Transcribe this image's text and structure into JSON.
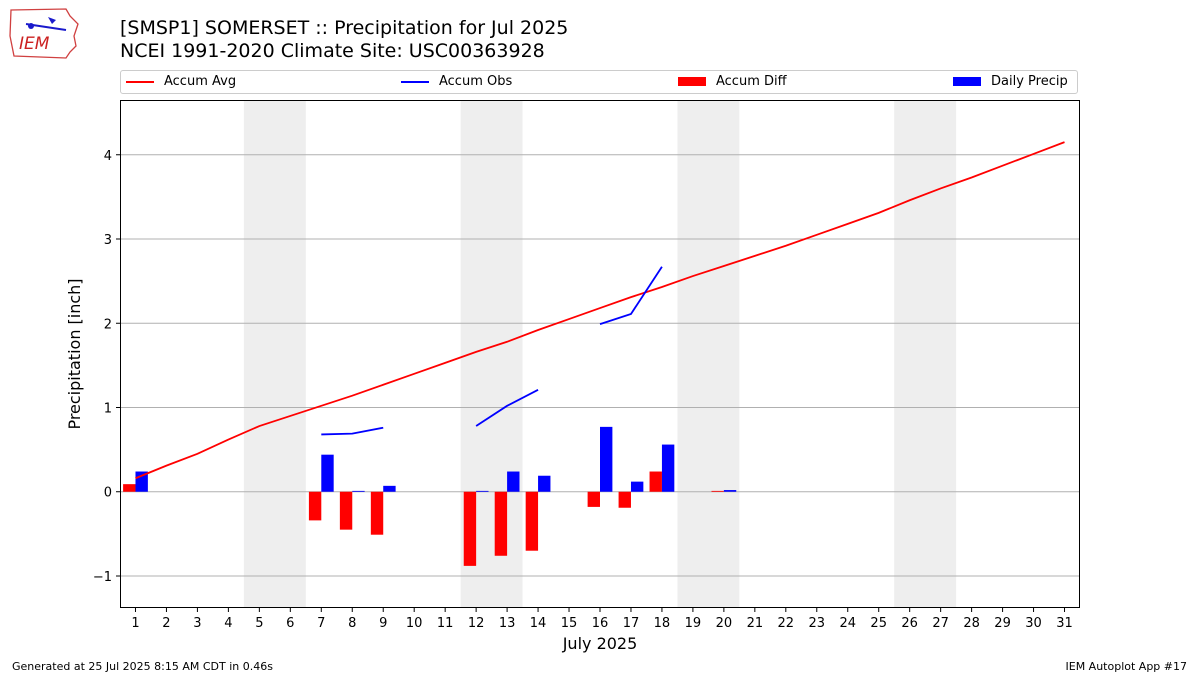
{
  "header": {
    "title_line1": "[SMSP1] SOMERSET :: Precipitation for Jul 2025",
    "title_line2": "NCEI 1991-2020 Climate Site: USC00363928"
  },
  "logo": {
    "text": "IEM"
  },
  "legend": {
    "items": [
      {
        "label": "Accum Avg",
        "color": "#ff0000",
        "kind": "line"
      },
      {
        "label": "Accum Obs",
        "color": "#0000ff",
        "kind": "line"
      },
      {
        "label": "Accum Diff",
        "color": "#ff0000",
        "kind": "patch"
      },
      {
        "label": "Daily Precip",
        "color": "#0000ff",
        "kind": "patch"
      }
    ]
  },
  "footer": {
    "left": "Generated at 25 Jul 2025 8:15 AM CDT in 0.46s",
    "right": "IEM Autoplot App #17"
  },
  "chart_data": {
    "type": "bar",
    "title": "[SMSP1] SOMERSET :: Precipitation for Jul 2025",
    "xlabel": "July 2025",
    "ylabel": "Precipitation [inch]",
    "xlim": [
      0.5,
      31.5
    ],
    "ylim": [
      -1.38,
      4.65
    ],
    "yticks": [
      -1,
      0,
      1,
      2,
      3,
      4
    ],
    "ytick_labels": [
      "−1",
      "0",
      "1",
      "2",
      "3",
      "4"
    ],
    "grid": "y",
    "weekend_shading": [
      [
        4.5,
        6.5
      ],
      [
        11.5,
        13.5
      ],
      [
        18.5,
        20.5
      ],
      [
        25.5,
        27.5
      ]
    ],
    "days": [
      1,
      2,
      3,
      4,
      5,
      6,
      7,
      8,
      9,
      10,
      11,
      12,
      13,
      14,
      15,
      16,
      17,
      18,
      19,
      20,
      21,
      22,
      23,
      24,
      25,
      26,
      27,
      28,
      29,
      30,
      31
    ],
    "accum_avg": [
      0.16,
      0.31,
      0.45,
      0.62,
      0.78,
      0.9,
      1.02,
      1.14,
      1.27,
      1.4,
      1.53,
      1.66,
      1.78,
      1.92,
      2.05,
      2.18,
      2.31,
      2.43,
      2.56,
      2.68,
      2.8,
      2.92,
      3.05,
      3.18,
      3.31,
      3.46,
      3.6,
      3.73,
      3.87,
      4.01,
      4.15
    ],
    "accum_obs_segments": [
      {
        "days": [
          7,
          8,
          9
        ],
        "values": [
          0.68,
          0.69,
          0.76
        ]
      },
      {
        "days": [
          12,
          13,
          14
        ],
        "values": [
          0.78,
          1.02,
          1.21
        ]
      },
      {
        "days": [
          16,
          17,
          18
        ],
        "values": [
          1.99,
          2.11,
          2.67
        ]
      }
    ],
    "accum_diff": [
      {
        "day": 1,
        "value": 0.09
      },
      {
        "day": 7,
        "value": -0.34
      },
      {
        "day": 8,
        "value": -0.45
      },
      {
        "day": 9,
        "value": -0.51
      },
      {
        "day": 12,
        "value": -0.88
      },
      {
        "day": 13,
        "value": -0.76
      },
      {
        "day": 14,
        "value": -0.7
      },
      {
        "day": 16,
        "value": -0.18
      },
      {
        "day": 17,
        "value": -0.19
      },
      {
        "day": 18,
        "value": 0.24
      },
      {
        "day": 20,
        "value": 0.01
      }
    ],
    "daily_precip": [
      {
        "day": 1,
        "value": 0.24
      },
      {
        "day": 7,
        "value": 0.44
      },
      {
        "day": 8,
        "value": 0.01
      },
      {
        "day": 9,
        "value": 0.07
      },
      {
        "day": 12,
        "value": 0.01
      },
      {
        "day": 13,
        "value": 0.24
      },
      {
        "day": 14,
        "value": 0.19
      },
      {
        "day": 16,
        "value": 0.77
      },
      {
        "day": 17,
        "value": 0.12
      },
      {
        "day": 18,
        "value": 0.56
      },
      {
        "day": 20,
        "value": 0.02
      }
    ]
  }
}
